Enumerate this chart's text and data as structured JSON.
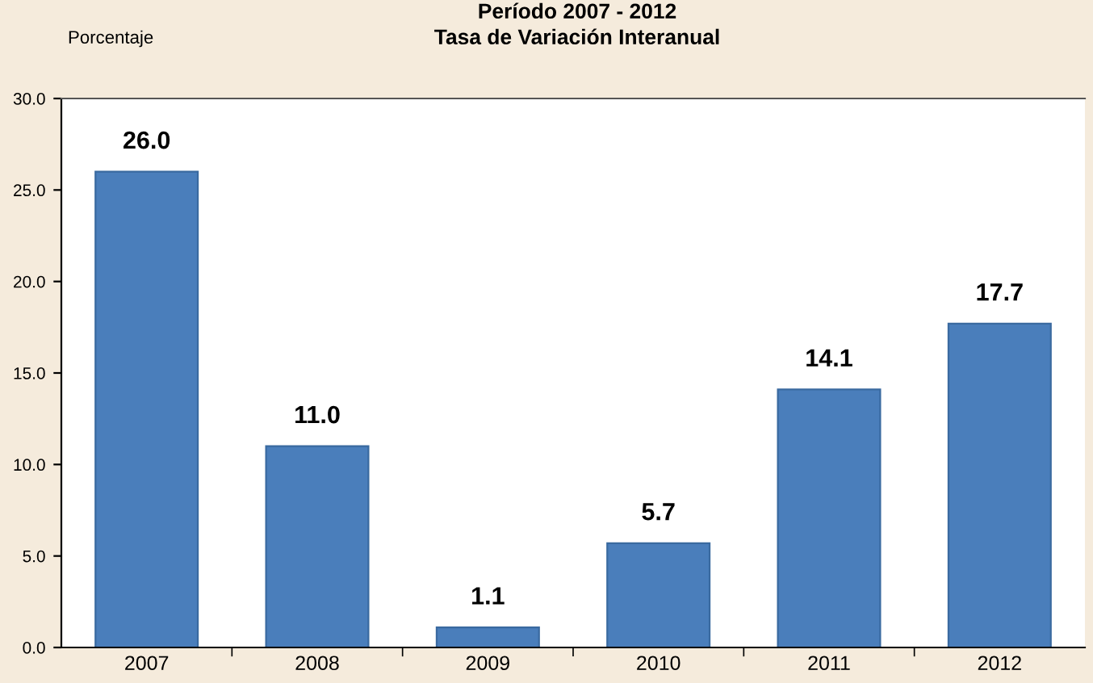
{
  "chart_data": {
    "type": "bar",
    "title": "Período 2007 - 2012",
    "subtitle": "Tasa de Variación Interanual",
    "ylabel": "Porcentaje",
    "categories": [
      "2007",
      "2008",
      "2009",
      "2010",
      "2011",
      "2012"
    ],
    "values": [
      26.0,
      11.0,
      1.1,
      5.7,
      14.1,
      17.7
    ],
    "value_labels": [
      "26.0",
      "11.0",
      "1.1",
      "5.7",
      "14.1",
      "17.7"
    ],
    "color": "#4a7ebb",
    "ylim": [
      0,
      30
    ],
    "yticks": [
      {
        "value": 0,
        "label": "0.0"
      },
      {
        "value": 5,
        "label": "5.0"
      },
      {
        "value": 10,
        "label": "10.0"
      },
      {
        "value": 15,
        "label": "15.0"
      },
      {
        "value": 20,
        "label": "20.0"
      },
      {
        "value": 25,
        "label": "25.0"
      },
      {
        "value": 30,
        "label": "30.0"
      }
    ],
    "grid": false,
    "legend": false
  }
}
